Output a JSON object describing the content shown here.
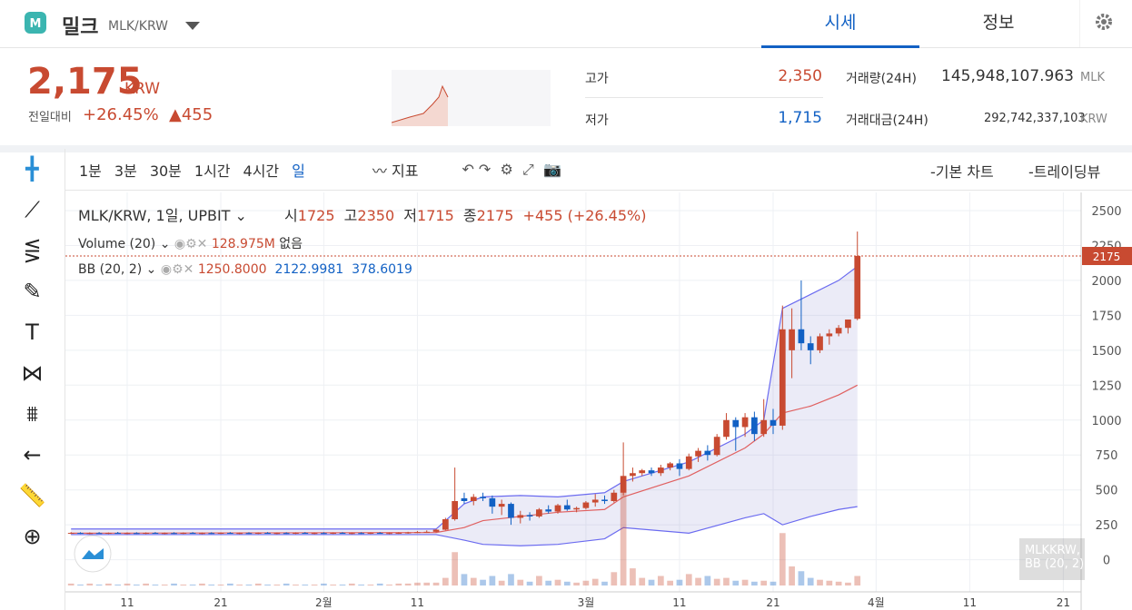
{
  "header": {
    "coin": "밀크",
    "pair": "MLK/KRW",
    "tabs": [
      "시세",
      "정보"
    ]
  },
  "price": {
    "value": "2,175",
    "unit": "KRW",
    "change_label": "전일대비",
    "change_pct": "+26.45%",
    "change_abs": "455"
  },
  "stats": [
    {
      "label": "고가",
      "value": "2,350"
    },
    {
      "label": "저가",
      "value": "1,715"
    },
    {
      "label": "거래량(24H)",
      "value": "145,948,107.963",
      "unit": "MLK"
    },
    {
      "label": "거래대금(24H)",
      "value": "292,742,337,103",
      "unit": "KRW"
    }
  ],
  "toolbar": {
    "intervals": [
      "1분",
      "3분",
      "30분",
      "1시간",
      "4시간",
      "일"
    ],
    "indicator": "지표",
    "views": [
      "-기본 차트",
      "-트레이딩뷰"
    ]
  },
  "legend": {
    "symbol": "MLK/KRW, 1일, UPBIT",
    "ohlc_labels": [
      "시",
      "고",
      "저",
      "종"
    ],
    "change": "+455 (+26.45%)",
    "volume_name": "Volume (20)",
    "volume_value": "128.975M",
    "volume_extra": "없음",
    "bb_name": "BB (20, 2)",
    "bb_values": [
      "1250.8000",
      "2122.9981",
      "378.6019"
    ]
  },
  "watermark": [
    "MLKKRW, 1일",
    "BB (20, 2)"
  ],
  "chart_data": {
    "type": "candlestick",
    "up_color": "#c84a31",
    "down_color": "#1261c4",
    "xlim": [
      3.4,
      111.9
    ],
    "ylim": [
      -230,
      2630
    ],
    "xticks": [
      {
        "value": 10,
        "label": "11"
      },
      {
        "value": 20,
        "label": "21"
      },
      {
        "value": 31,
        "label": "2월"
      },
      {
        "value": 41,
        "label": "11"
      },
      {
        "value": 59,
        "label": "3월"
      },
      {
        "value": 69,
        "label": "11"
      },
      {
        "value": 79,
        "label": "21"
      },
      {
        "value": 90,
        "label": "4월"
      },
      {
        "value": 100,
        "label": "11"
      },
      {
        "value": 110,
        "label": "21"
      }
    ],
    "yticks": [
      0,
      250,
      500,
      750,
      1000,
      1250,
      1500,
      1750,
      2000,
      2250,
      2500
    ],
    "grid": true,
    "candles": [
      [
        4,
        190,
        198,
        184,
        192,
        2
      ],
      [
        5,
        192,
        197,
        185,
        189,
        1
      ],
      [
        6,
        189,
        196,
        183,
        191,
        2
      ],
      [
        7,
        191,
        198,
        186,
        190,
        1
      ],
      [
        8,
        190,
        195,
        184,
        192,
        2
      ],
      [
        9,
        192,
        199,
        186,
        188,
        1
      ],
      [
        10,
        188,
        196,
        183,
        191,
        2
      ],
      [
        11,
        191,
        197,
        185,
        190,
        1
      ],
      [
        12,
        190,
        196,
        184,
        192,
        2
      ],
      [
        13,
        192,
        198,
        186,
        189,
        1
      ],
      [
        14,
        189,
        195,
        183,
        191,
        1
      ],
      [
        15,
        191,
        197,
        185,
        190,
        2
      ],
      [
        16,
        190,
        196,
        184,
        192,
        1
      ],
      [
        17,
        192,
        198,
        186,
        189,
        1
      ],
      [
        18,
        189,
        195,
        183,
        191,
        2
      ],
      [
        19,
        191,
        197,
        185,
        190,
        1
      ],
      [
        20,
        190,
        196,
        184,
        192,
        1
      ],
      [
        21,
        192,
        198,
        186,
        189,
        2
      ],
      [
        22,
        189,
        195,
        183,
        191,
        1
      ],
      [
        23,
        191,
        197,
        185,
        190,
        1
      ],
      [
        24,
        190,
        196,
        184,
        192,
        2
      ],
      [
        25,
        192,
        198,
        186,
        189,
        1
      ],
      [
        26,
        189,
        195,
        183,
        191,
        1
      ],
      [
        27,
        191,
        197,
        185,
        190,
        2
      ],
      [
        28,
        190,
        196,
        184,
        192,
        1
      ],
      [
        29,
        192,
        198,
        186,
        189,
        1
      ],
      [
        30,
        189,
        195,
        183,
        191,
        1
      ],
      [
        31,
        191,
        197,
        185,
        190,
        2
      ],
      [
        32,
        190,
        196,
        184,
        192,
        1
      ],
      [
        33,
        192,
        198,
        186,
        189,
        1
      ],
      [
        34,
        189,
        195,
        183,
        191,
        2
      ],
      [
        35,
        191,
        197,
        185,
        190,
        1
      ],
      [
        36,
        190,
        196,
        184,
        192,
        1
      ],
      [
        37,
        192,
        198,
        186,
        189,
        2
      ],
      [
        38,
        189,
        195,
        183,
        191,
        1
      ],
      [
        39,
        191,
        197,
        185,
        192,
        2
      ],
      [
        40,
        192,
        200,
        186,
        195,
        2
      ],
      [
        41,
        195,
        205,
        190,
        198,
        3
      ],
      [
        42,
        198,
        210,
        192,
        200,
        3
      ],
      [
        43,
        200,
        220,
        195,
        215,
        3
      ],
      [
        44,
        215,
        300,
        210,
        290,
        8
      ],
      [
        45,
        290,
        660,
        280,
        420,
        35
      ],
      [
        46,
        440,
        480,
        400,
        420,
        12
      ],
      [
        47,
        420,
        470,
        390,
        450,
        8
      ],
      [
        48,
        450,
        480,
        420,
        440,
        6
      ],
      [
        49,
        440,
        460,
        330,
        380,
        10
      ],
      [
        50,
        380,
        430,
        320,
        400,
        5
      ],
      [
        51,
        400,
        410,
        250,
        300,
        12
      ],
      [
        52,
        300,
        350,
        260,
        320,
        6
      ],
      [
        53,
        320,
        340,
        280,
        310,
        4
      ],
      [
        54,
        310,
        370,
        300,
        360,
        10
      ],
      [
        55,
        360,
        390,
        330,
        345,
        5
      ],
      [
        56,
        345,
        400,
        330,
        390,
        6
      ],
      [
        57,
        390,
        430,
        350,
        360,
        4
      ],
      [
        58,
        360,
        380,
        340,
        370,
        3
      ],
      [
        59,
        370,
        420,
        360,
        410,
        5
      ],
      [
        60,
        410,
        470,
        380,
        430,
        7
      ],
      [
        61,
        430,
        460,
        400,
        420,
        4
      ],
      [
        62,
        420,
        500,
        410,
        480,
        14
      ],
      [
        63,
        480,
        840,
        460,
        600,
        100
      ],
      [
        64,
        600,
        660,
        560,
        620,
        18
      ],
      [
        65,
        620,
        650,
        600,
        640,
        8
      ],
      [
        66,
        640,
        660,
        600,
        620,
        6
      ],
      [
        67,
        620,
        680,
        600,
        660,
        10
      ],
      [
        68,
        660,
        700,
        640,
        690,
        5
      ],
      [
        69,
        690,
        720,
        600,
        650,
        6
      ],
      [
        70,
        650,
        760,
        640,
        740,
        12
      ],
      [
        71,
        740,
        800,
        700,
        780,
        8
      ],
      [
        72,
        780,
        820,
        710,
        750,
        10
      ],
      [
        73,
        750,
        900,
        740,
        880,
        7
      ],
      [
        74,
        880,
        1050,
        860,
        1000,
        8
      ],
      [
        75,
        1000,
        1020,
        780,
        950,
        5
      ],
      [
        76,
        950,
        1050,
        880,
        1020,
        6
      ],
      [
        77,
        1020,
        1060,
        850,
        900,
        4
      ],
      [
        78,
        900,
        1150,
        880,
        1000,
        5
      ],
      [
        79,
        1000,
        1080,
        900,
        960,
        4
      ],
      [
        80,
        960,
        1820,
        930,
        1650,
        55
      ],
      [
        81,
        1500,
        1800,
        1300,
        1650,
        20
      ],
      [
        82,
        1650,
        2000,
        1500,
        1550,
        15
      ],
      [
        83,
        1550,
        1600,
        1400,
        1500,
        8
      ],
      [
        84,
        1500,
        1620,
        1480,
        1600,
        6
      ],
      [
        85,
        1600,
        1650,
        1540,
        1620,
        5
      ],
      [
        86,
        1620,
        1680,
        1600,
        1660,
        4
      ],
      [
        87,
        1660,
        1720,
        1620,
        1720,
        3
      ],
      [
        88,
        1725,
        2350,
        1715,
        2175,
        10
      ]
    ],
    "bollinger": {
      "x": [
        4,
        43,
        46,
        48,
        52,
        56,
        61,
        63,
        70,
        76,
        78,
        80,
        83,
        86,
        88
      ],
      "upper": [
        220,
        220,
        400,
        450,
        460,
        450,
        480,
        560,
        700,
        900,
        1000,
        1800,
        1900,
        2000,
        2100
      ],
      "middle": [
        190,
        195,
        230,
        280,
        310,
        340,
        360,
        450,
        600,
        800,
        900,
        1050,
        1100,
        1180,
        1250
      ],
      "lower": [
        180,
        180,
        140,
        110,
        100,
        110,
        150,
        230,
        190,
        300,
        330,
        250,
        310,
        360,
        380
      ]
    }
  }
}
